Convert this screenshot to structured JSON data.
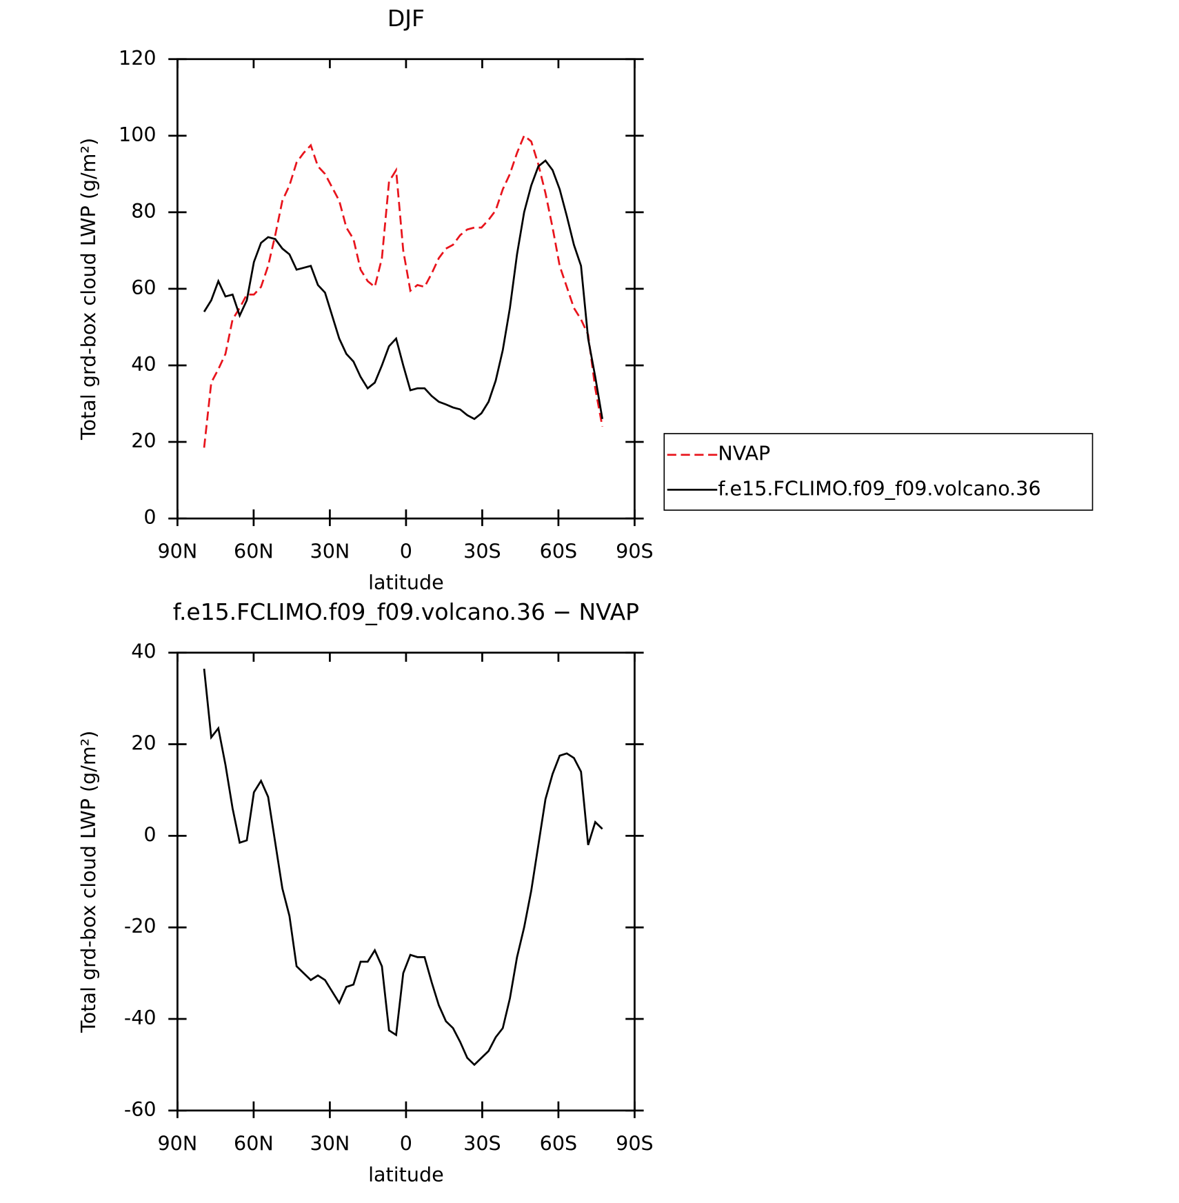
{
  "chart_data": [
    {
      "type": "line",
      "title": "DJF",
      "xlabel": "latitude",
      "ylabel": "Total grd-box cloud LWP (g/m²)",
      "xlim": [
        90,
        -90
      ],
      "xticks": [
        {
          "value": 90,
          "label": "90N"
        },
        {
          "value": 60,
          "label": "60N"
        },
        {
          "value": 30,
          "label": "30N"
        },
        0,
        {
          "value": -30,
          "label": "30S"
        },
        {
          "value": -60,
          "label": "60S"
        },
        {
          "value": -90,
          "label": "90S"
        }
      ],
      "ylim": [
        0,
        120
      ],
      "yticks": [
        0,
        20,
        40,
        60,
        80,
        100,
        120
      ],
      "legend": "right",
      "x": [
        79.5,
        76.7,
        73.9,
        71.1,
        68.3,
        65.5,
        62.7,
        59.9,
        57.1,
        54.3,
        51.5,
        48.7,
        45.9,
        43.1,
        40.3,
        37.5,
        34.7,
        31.9,
        29.1,
        26.3,
        23.5,
        20.7,
        17.9,
        15.1,
        12.3,
        9.5,
        6.7,
        3.9,
        1.1,
        -1.7,
        -4.5,
        -7.3,
        -10.1,
        -12.9,
        -15.7,
        -18.5,
        -21.3,
        -24.1,
        -26.9,
        -29.7,
        -32.5,
        -35.3,
        -38.1,
        -40.9,
        -43.7,
        -46.5,
        -49.3,
        -52.1,
        -54.9,
        -57.7,
        -60.5,
        -63.3,
        -66.1,
        -68.9,
        -71.7,
        -74.5,
        -77.3
      ],
      "series": [
        {
          "name": "NVAP",
          "color": "#e8141c",
          "dashed": true,
          "values": [
            18.5,
            35.5,
            39,
            43,
            52,
            55,
            58.5,
            58.5,
            60.5,
            66,
            74,
            83,
            87,
            93,
            95.5,
            97.5,
            92,
            90,
            86.5,
            83,
            76,
            73,
            65,
            62,
            60.5,
            68,
            88,
            91,
            70,
            59.5,
            61,
            60.5,
            64,
            68,
            70.5,
            71.5,
            74,
            75.5,
            76,
            76,
            78,
            80.5,
            86,
            90,
            95.5,
            100,
            98.5,
            92.5,
            85,
            76,
            66,
            60.5,
            55,
            52,
            48,
            34,
            24
          ]
        },
        {
          "name": "f.e15.FCLIMO.f09_f09.volcano.36",
          "color": "#000000",
          "dashed": false,
          "values": [
            54,
            57,
            62,
            58,
            58.5,
            53,
            57,
            67,
            72,
            73.5,
            73,
            70.5,
            69,
            65,
            65.5,
            66,
            61,
            59,
            53,
            47,
            43,
            41,
            37,
            34,
            35.5,
            40,
            45,
            47,
            40,
            33.5,
            34,
            34,
            32,
            30.5,
            29.8,
            29,
            28.5,
            27,
            26,
            27.5,
            30.5,
            36,
            44,
            55,
            69,
            80,
            87,
            92,
            93.5,
            91,
            86,
            79,
            71.5,
            66,
            47,
            37,
            26
          ]
        }
      ]
    },
    {
      "type": "line",
      "title": "f.e15.FCLIMO.f09_f09.volcano.36 − NVAP",
      "xlabel": "latitude",
      "ylabel": "Total grd-box cloud LWP (g/m²)",
      "xlim": [
        90,
        -90
      ],
      "xticks": [
        {
          "value": 90,
          "label": "90N"
        },
        {
          "value": 60,
          "label": "60N"
        },
        {
          "value": 30,
          "label": "30N"
        },
        0,
        {
          "value": -30,
          "label": "30S"
        },
        {
          "value": -60,
          "label": "60S"
        },
        {
          "value": -90,
          "label": "90S"
        }
      ],
      "ylim": [
        -60,
        40
      ],
      "yticks": [
        -60,
        -40,
        -20,
        0,
        20,
        40
      ],
      "x": [
        79.5,
        76.7,
        73.9,
        71.1,
        68.3,
        65.5,
        62.7,
        59.9,
        57.1,
        54.3,
        51.5,
        48.7,
        45.9,
        43.1,
        40.3,
        37.5,
        34.7,
        31.9,
        29.1,
        26.3,
        23.5,
        20.7,
        17.9,
        15.1,
        12.3,
        9.5,
        6.7,
        3.9,
        1.1,
        -1.7,
        -4.5,
        -7.3,
        -10.1,
        -12.9,
        -15.7,
        -18.5,
        -21.3,
        -24.1,
        -26.9,
        -29.7,
        -32.5,
        -35.3,
        -38.1,
        -40.9,
        -43.7,
        -46.5,
        -49.3,
        -52.1,
        -54.9,
        -57.7,
        -60.5,
        -63.3,
        -66.1,
        -68.9,
        -71.7,
        -74.5,
        -77.3
      ],
      "series": [
        {
          "color": "#000000",
          "dashed": false,
          "values": [
            36.5,
            21.5,
            23.5,
            15.5,
            6,
            -1.5,
            -1,
            9.5,
            12,
            8.5,
            -1.5,
            -11.5,
            -17.5,
            -28.5,
            -30,
            -31.5,
            -30.5,
            -31.5,
            -34,
            -36.5,
            -33,
            -32.5,
            -27.5,
            -27.5,
            -25,
            -28.5,
            -42.5,
            -43.5,
            -30,
            -26,
            -26.5,
            -26.5,
            -32,
            -37,
            -40.5,
            -42,
            -45,
            -48.5,
            -50,
            -48.5,
            -47,
            -44,
            -42,
            -35.5,
            -26.5,
            -20,
            -12,
            -2,
            8,
            13.5,
            17.5,
            18,
            17,
            14,
            -2,
            3,
            1.5
          ]
        }
      ]
    }
  ]
}
